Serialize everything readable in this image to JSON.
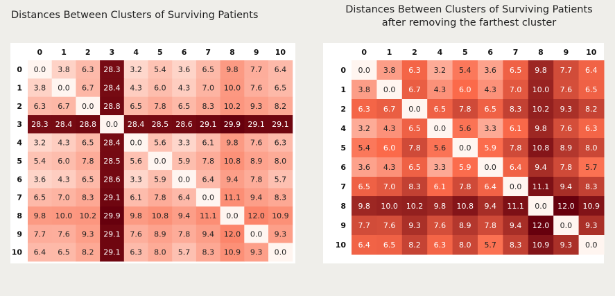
{
  "titles": {
    "left": "Distances Between Clusters of Surviving Patients",
    "right_line1": "Distances Between Clusters of Surviving Patients",
    "right_line2": "after removing the farthest cluster"
  },
  "colors": {
    "low": "#fff5f0",
    "mid": "#fb6a4a",
    "high": "#67000d"
  },
  "chart_data": [
    {
      "type": "heatmap",
      "title": "Distances Between Clusters of Surviving Patients",
      "x_labels": [
        "0",
        "1",
        "2",
        "3",
        "4",
        "5",
        "6",
        "7",
        "8",
        "9",
        "10"
      ],
      "y_labels": [
        "0",
        "1",
        "2",
        "3",
        "4",
        "5",
        "6",
        "7",
        "8",
        "9",
        "10"
      ],
      "vmin": 0.0,
      "vmax": 29.9,
      "values": [
        [
          0.0,
          3.8,
          6.3,
          28.3,
          3.2,
          5.4,
          3.6,
          6.5,
          9.8,
          7.7,
          6.4
        ],
        [
          3.8,
          0.0,
          6.7,
          28.4,
          4.3,
          6.0,
          4.3,
          7.0,
          10.0,
          7.6,
          6.5
        ],
        [
          6.3,
          6.7,
          0.0,
          28.8,
          6.5,
          7.8,
          6.5,
          8.3,
          10.2,
          9.3,
          8.2
        ],
        [
          28.3,
          28.4,
          28.8,
          0.0,
          28.4,
          28.5,
          28.6,
          29.1,
          29.9,
          29.1,
          29.1
        ],
        [
          3.2,
          4.3,
          6.5,
          28.4,
          0.0,
          5.6,
          3.3,
          6.1,
          9.8,
          7.6,
          6.3
        ],
        [
          5.4,
          6.0,
          7.8,
          28.5,
          5.6,
          0.0,
          5.9,
          7.8,
          10.8,
          8.9,
          8.0
        ],
        [
          3.6,
          4.3,
          6.5,
          28.6,
          3.3,
          5.9,
          0.0,
          6.4,
          9.4,
          7.8,
          5.7
        ],
        [
          6.5,
          7.0,
          8.3,
          29.1,
          6.1,
          7.8,
          6.4,
          0.0,
          11.1,
          9.4,
          8.3
        ],
        [
          9.8,
          10.0,
          10.2,
          29.9,
          9.8,
          10.8,
          9.4,
          11.1,
          0.0,
          12.0,
          10.9
        ],
        [
          7.7,
          7.6,
          9.3,
          29.1,
          7.6,
          8.9,
          7.8,
          9.4,
          12.0,
          0.0,
          9.3
        ],
        [
          6.4,
          6.5,
          8.2,
          29.1,
          6.3,
          8.0,
          5.7,
          8.3,
          10.9,
          9.3,
          0.0
        ]
      ]
    },
    {
      "type": "heatmap",
      "title": "Distances Between Clusters of Surviving Patients after removing the farthest cluster",
      "x_labels": [
        "0",
        "1",
        "2",
        "4",
        "5",
        "6",
        "7",
        "8",
        "9",
        "10"
      ],
      "y_labels": [
        "0",
        "1",
        "2",
        "4",
        "5",
        "6",
        "7",
        "8",
        "9",
        "10"
      ],
      "vmin": 0.0,
      "vmax": 12.0,
      "values": [
        [
          0.0,
          3.8,
          6.3,
          3.2,
          5.4,
          3.6,
          6.5,
          9.8,
          7.7,
          6.4
        ],
        [
          3.8,
          0.0,
          6.7,
          4.3,
          6.0,
          4.3,
          7.0,
          10.0,
          7.6,
          6.5
        ],
        [
          6.3,
          6.7,
          0.0,
          6.5,
          7.8,
          6.5,
          8.3,
          10.2,
          9.3,
          8.2
        ],
        [
          3.2,
          4.3,
          6.5,
          0.0,
          5.6,
          3.3,
          6.1,
          9.8,
          7.6,
          6.3
        ],
        [
          5.4,
          6.0,
          7.8,
          5.6,
          0.0,
          5.9,
          7.8,
          10.8,
          8.9,
          8.0
        ],
        [
          3.6,
          4.3,
          6.5,
          3.3,
          5.9,
          0.0,
          6.4,
          9.4,
          7.8,
          5.7
        ],
        [
          6.5,
          7.0,
          8.3,
          6.1,
          7.8,
          6.4,
          0.0,
          11.1,
          9.4,
          8.3
        ],
        [
          9.8,
          10.0,
          10.2,
          9.8,
          10.8,
          9.4,
          11.1,
          0.0,
          12.0,
          10.9
        ],
        [
          7.7,
          7.6,
          9.3,
          7.6,
          8.9,
          7.8,
          9.4,
          12.0,
          0.0,
          9.3
        ],
        [
          6.4,
          6.5,
          8.2,
          6.3,
          8.0,
          5.7,
          8.3,
          10.9,
          9.3,
          0.0
        ]
      ]
    }
  ]
}
